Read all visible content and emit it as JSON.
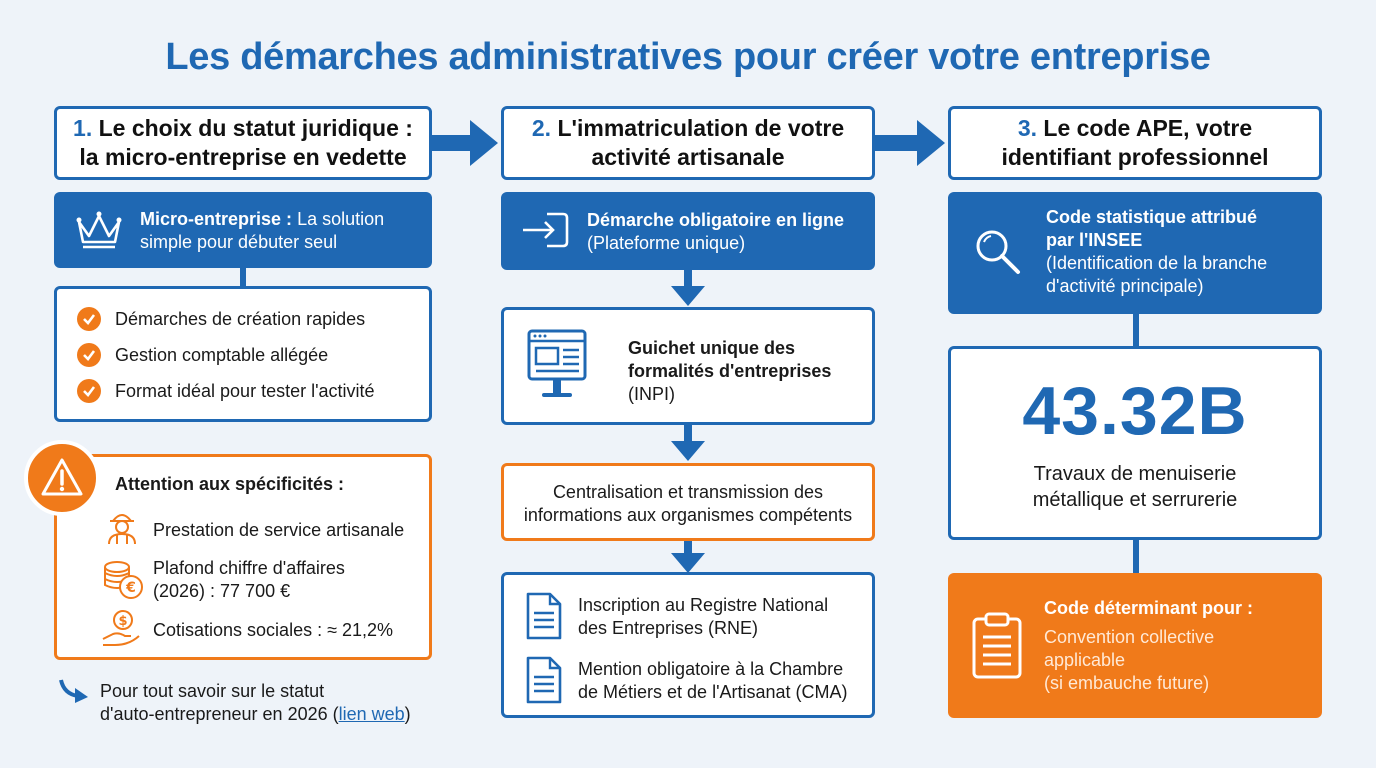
{
  "title": "Les démarches administratives pour créer votre entreprise",
  "col1": {
    "header_num": "1.",
    "header_line1": "Le choix du statut juridique :",
    "header_line2": "la micro-entreprise en vedette",
    "micro_bold": "Micro-entreprise :",
    "micro_rest1": "La solution",
    "micro_rest2": "simple pour débuter seul",
    "benefits": [
      "Démarches de création rapides",
      "Gestion comptable allégée",
      "Format idéal pour tester l'activité"
    ],
    "warning_title": "Attention aux spécificités :",
    "warning_items": [
      {
        "line1": "Prestation de service artisanale",
        "line2": ""
      },
      {
        "line1": "Plafond chiffre d'affaires",
        "line2": "(2026) : 77 700 €"
      },
      {
        "line1": "Cotisations sociales : ≈ 21,2%",
        "line2": ""
      }
    ],
    "footer_line1": "Pour tout savoir sur le statut",
    "footer_line2_pre": "d'auto-entrepreneur en 2026 (",
    "footer_link": "lien web",
    "footer_line2_post": ")"
  },
  "col2": {
    "header_num": "2.",
    "header_line1": "L'immatriculation de votre",
    "header_line2": "activité artisanale",
    "online_bold": "Démarche obligatoire en ligne",
    "online_sub": "(Plateforme unique)",
    "guichet_line1": "Guichet unique des",
    "guichet_line2": "formalités d'entreprises",
    "guichet_line3": "(INPI)",
    "central_line1": "Centralisation et transmission des",
    "central_line2": "informations aux organismes compétents",
    "docs": [
      {
        "line1": "Inscription au Registre National",
        "line2": "des Entreprises (RNE)"
      },
      {
        "line1": "Mention obligatoire à la Chambre",
        "line2": "de Métiers et de l'Artisanat (CMA)"
      }
    ]
  },
  "col3": {
    "header_num": "3.",
    "header_line1": "Le code APE, votre",
    "header_line2": "identifiant professionnel",
    "insee_bold1": "Code statistique attribué",
    "insee_bold2": "par l'INSEE",
    "insee_sub1": "(Identification de la branche",
    "insee_sub2": "d'activité principale)",
    "code": "43.32B",
    "code_desc1": "Travaux de menuiserie",
    "code_desc2": "métallique et serrurerie",
    "determ_bold": "Code déterminant pour :",
    "determ_line1": "Convention collective",
    "determ_line2": "applicable",
    "determ_line3": "(si embauche future)"
  },
  "colors": {
    "primary_blue": "#1f68b3",
    "accent_orange": "#f07a1a",
    "background": "#eef3f9"
  },
  "icons": [
    "crown-icon",
    "check-icon",
    "warning-icon",
    "worker-icon",
    "coins-euro-icon",
    "hand-dollar-icon",
    "login-arrow-icon",
    "monitor-icon",
    "document-icon",
    "search-icon",
    "clipboard-icon",
    "curved-arrow-icon"
  ]
}
